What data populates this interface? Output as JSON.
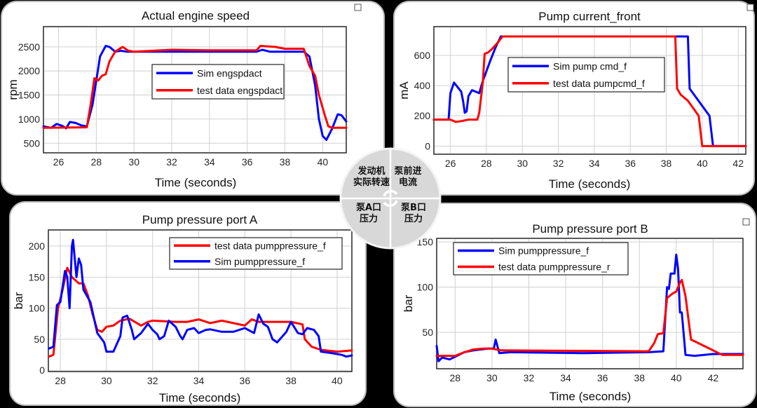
{
  "colors": {
    "sim": "#0000ff",
    "test": "#ff0000",
    "nav_bg": "#d8d8d8"
  },
  "nav": {
    "items": [
      {
        "line1": "发动机",
        "line2": "实际转速"
      },
      {
        "line1": "泵前进",
        "line2": "电流"
      },
      {
        "line1": "泵A口",
        "line2": "压力"
      },
      {
        "line1": "泵B口",
        "line2": "压力"
      }
    ],
    "center_icon": "rotate-icon"
  },
  "chart_data": [
    {
      "type": "line",
      "title": "Actual engine speed",
      "xlabel": "Time (seconds)",
      "ylabel": "rpm",
      "xlim": [
        25.2,
        41.25
      ],
      "ylim": [
        300,
        2920
      ],
      "xticks": [
        26,
        28,
        30,
        32,
        34,
        36,
        38,
        40
      ],
      "yticks": [
        500,
        1000,
        1500,
        2000,
        2500
      ],
      "grid": true,
      "legend_position": "center",
      "series": [
        {
          "name": "Sim engspdact",
          "color": "#0000ff",
          "x": [
            25.2,
            25.6,
            25.9,
            26.2,
            26.4,
            26.6,
            26.9,
            27.2,
            27.5,
            27.8,
            28.0,
            28.2,
            28.5,
            28.7,
            29.0,
            29.3,
            29.6,
            30,
            32,
            34,
            36.5,
            36.8,
            37.2,
            39,
            39.3,
            39.6,
            39.8,
            40.0,
            40.2,
            40.5,
            40.8,
            41.0,
            41.25
          ],
          "y": [
            850,
            820,
            900,
            860,
            810,
            940,
            920,
            870,
            850,
            1300,
            1800,
            2300,
            2520,
            2500,
            2400,
            2420,
            2400,
            2400,
            2400,
            2400,
            2400,
            2440,
            2400,
            2400,
            2300,
            1700,
            1000,
            650,
            570,
            800,
            1100,
            1080,
            950
          ]
        },
        {
          "name": "test data engspdact",
          "color": "#ff0000",
          "x": [
            25.2,
            27.5,
            27.7,
            27.9,
            28.1,
            28.3,
            28.5,
            28.7,
            29.0,
            29.4,
            29.7,
            30,
            31,
            32,
            34,
            36.5,
            36.7,
            37.5,
            38,
            39,
            39.3,
            39.6,
            39.8,
            40.1,
            40.3,
            40.5,
            41.25
          ],
          "y": [
            820,
            830,
            1300,
            1850,
            1800,
            1900,
            1930,
            2200,
            2400,
            2500,
            2420,
            2400,
            2420,
            2440,
            2430,
            2430,
            2520,
            2500,
            2460,
            2460,
            2100,
            1900,
            1500,
            1100,
            850,
            820,
            820
          ]
        }
      ]
    },
    {
      "type": "line",
      "title": "Pump current_front",
      "xlabel": "Time (seconds)",
      "ylabel": "mA",
      "xlim": [
        25.08,
        42.42
      ],
      "ylim": [
        -54,
        790
      ],
      "xticks": [
        26,
        28,
        30,
        32,
        34,
        36,
        38,
        40,
        42
      ],
      "yticks": [
        0,
        200,
        400,
        600
      ],
      "grid": true,
      "legend_position": "center",
      "series": [
        {
          "name": "Sim pump cmd_f",
          "color": "#0000ff",
          "x": [
            25.08,
            25.9,
            26.0,
            26.2,
            26.4,
            26.6,
            26.7,
            26.8,
            26.9,
            27.0,
            27.2,
            27.4,
            27.6,
            27.8,
            28.2,
            28.5,
            28.8,
            39.2,
            39.3,
            40.4,
            40.6,
            42.42
          ],
          "y": [
            175,
            175,
            350,
            420,
            390,
            360,
            300,
            220,
            230,
            330,
            370,
            360,
            350,
            430,
            560,
            650,
            725,
            725,
            380,
            200,
            0,
            0
          ]
        },
        {
          "name": "test data pumpcmd_f",
          "color": "#ff0000",
          "x": [
            25.08,
            26.0,
            26.3,
            26.6,
            27.0,
            27.5,
            27.6,
            27.8,
            27.9,
            28.1,
            28.3,
            28.6,
            28.9,
            38.5,
            38.6,
            38.8,
            39.2,
            39.5,
            39.8,
            40.0,
            42.42
          ],
          "y": [
            175,
            175,
            160,
            165,
            175,
            175,
            220,
            420,
            610,
            620,
            640,
            680,
            725,
            725,
            380,
            340,
            300,
            250,
            200,
            0,
            0
          ]
        }
      ]
    },
    {
      "type": "line",
      "title": "Pump pressure port A",
      "xlabel": "Time (seconds)",
      "ylabel": "bar",
      "xlim": [
        27.48,
        40.64
      ],
      "ylim": [
        -2,
        226
      ],
      "xticks": [
        28,
        30,
        32,
        34,
        36,
        38,
        40
      ],
      "yticks": [
        0,
        50,
        100,
        150,
        200
      ],
      "grid": true,
      "legend_position": "top-right",
      "series": [
        {
          "name": "test data pumppressure_f",
          "color": "#ff0000",
          "x": [
            27.5,
            27.7,
            27.9,
            28.1,
            28.3,
            28.5,
            28.8,
            29.0,
            29.2,
            29.4,
            29.6,
            29.8,
            30,
            30.3,
            30.6,
            31,
            31.5,
            31.8,
            32.0,
            33,
            33.5,
            34,
            34.5,
            35,
            35.5,
            36,
            36.3,
            36.6,
            37,
            38,
            38.5,
            38.6,
            38.9,
            39.3,
            40,
            40.64
          ],
          "y": [
            22,
            25,
            100,
            130,
            165,
            150,
            140,
            140,
            120,
            90,
            65,
            62,
            70,
            72,
            80,
            83,
            72,
            78,
            80,
            78,
            78,
            82,
            76,
            80,
            76,
            72,
            82,
            78,
            78,
            78,
            74,
            50,
            38,
            33,
            30,
            32
          ]
        },
        {
          "name": "Sim pumppressure_f",
          "color": "#0000ff",
          "x": [
            27.5,
            27.7,
            27.85,
            28.0,
            28.2,
            28.3,
            28.4,
            28.5,
            28.55,
            28.7,
            28.8,
            28.9,
            29.0,
            29.3,
            29.6,
            29.9,
            30.0,
            30.3,
            30.6,
            30.7,
            30.9,
            31.1,
            31.2,
            31.5,
            31.8,
            32.0,
            32.2,
            32.3,
            32.5,
            32.7,
            33.0,
            33.2,
            33.3,
            33.5,
            33.8,
            34.0,
            34.3,
            34.5,
            35,
            35.5,
            36,
            36.4,
            36.6,
            36.8,
            37.0,
            37.2,
            37.4,
            37.8,
            38.0,
            38.3,
            38.5,
            38.7,
            39.0,
            39.2,
            39.3,
            39.7,
            40.2,
            40.4,
            40.64
          ],
          "y": [
            35,
            38,
            105,
            110,
            160,
            150,
            100,
            200,
            210,
            150,
            180,
            170,
            130,
            110,
            60,
            45,
            30,
            30,
            55,
            85,
            88,
            65,
            50,
            60,
            75,
            65,
            58,
            50,
            55,
            80,
            70,
            55,
            50,
            65,
            68,
            60,
            65,
            66,
            62,
            62,
            68,
            60,
            90,
            75,
            70,
            50,
            45,
            62,
            78,
            60,
            58,
            68,
            65,
            55,
            30,
            28,
            25,
            22,
            24
          ]
        }
      ]
    },
    {
      "type": "line",
      "title": "Pump pressure port B",
      "xlabel": "Time (seconds)",
      "ylabel": "bar",
      "xlim": [
        27.0,
        43.62
      ],
      "ylim": [
        9.7,
        154
      ],
      "xticks": [
        28,
        30,
        32,
        34,
        36,
        38,
        40,
        42
      ],
      "yticks": [
        50,
        100,
        150
      ],
      "grid": true,
      "legend_position": "top-left",
      "series": [
        {
          "name": "Sim pumppressure_f",
          "color": "#0000ff",
          "x": [
            27.0,
            27.1,
            27.3,
            27.7,
            28,
            28.5,
            29,
            29.8,
            30.1,
            30.2,
            30.4,
            31,
            35,
            38.5,
            39.3,
            39.5,
            39.6,
            39.7,
            39.9,
            40.0,
            40.1,
            40.2,
            40.3,
            40.5,
            41,
            42,
            43,
            43.62
          ],
          "y": [
            35,
            18,
            22,
            20,
            23,
            28,
            30,
            32,
            32,
            42,
            27,
            28,
            27,
            28,
            29,
            100,
            98,
            115,
            115,
            136,
            120,
            72,
            72,
            25,
            24,
            26,
            26,
            26
          ]
        },
        {
          "name": "test data pumppressure_r",
          "color": "#ff0000",
          "x": [
            27.0,
            28,
            28.5,
            29,
            29.5,
            30,
            30.5,
            38.5,
            38.8,
            39.0,
            39.3,
            39.5,
            39.8,
            40.0,
            40.2,
            40.3,
            40.5,
            40.8,
            41,
            41.5,
            42,
            42.5,
            43.62
          ],
          "y": [
            24,
            24,
            28,
            31,
            32,
            32,
            30,
            29,
            38,
            48,
            49,
            88,
            93,
            95,
            105,
            108,
            90,
            42,
            40,
            35,
            30,
            25,
            25
          ]
        }
      ]
    }
  ]
}
